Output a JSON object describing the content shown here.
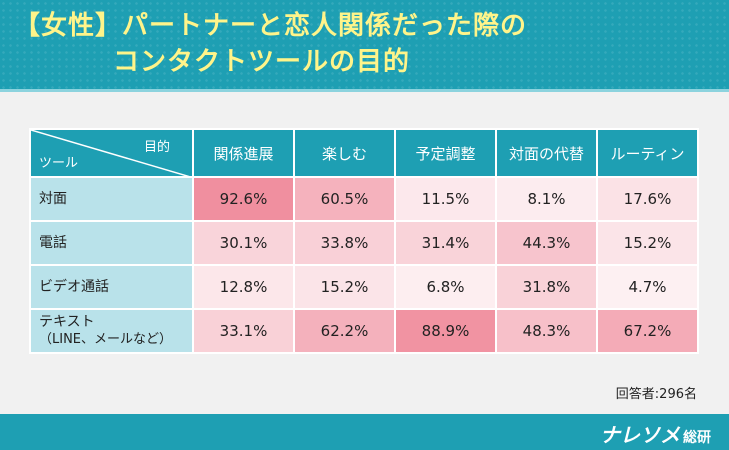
{
  "header": {
    "title_line1": "【女性】パートナーと恋人関係だった際の",
    "title_line2": "コンタクトツールの目的"
  },
  "table_corner": {
    "top": "目的",
    "bottom": "ツール"
  },
  "chart_data": {
    "type": "table",
    "columns": [
      "関係進展",
      "楽しむ",
      "予定調整",
      "対面の代替",
      "ルーティン"
    ],
    "rows": [
      {
        "label": "対面",
        "sublabel": "",
        "values": [
          92.6,
          60.5,
          11.5,
          8.1,
          17.6
        ],
        "display": [
          "92.6%",
          "60.5%",
          "11.5%",
          "8.1%",
          "17.6%"
        ]
      },
      {
        "label": "電話",
        "sublabel": "",
        "values": [
          30.1,
          33.8,
          31.4,
          44.3,
          15.2
        ],
        "display": [
          "30.1%",
          "33.8%",
          "31.4%",
          "44.3%",
          "15.2%"
        ]
      },
      {
        "label": "ビデオ通話",
        "sublabel": "",
        "values": [
          12.8,
          15.2,
          6.8,
          31.8,
          4.7
        ],
        "display": [
          "12.8%",
          "15.2%",
          "6.8%",
          "31.8%",
          "4.7%"
        ]
      },
      {
        "label": "テキスト",
        "sublabel": "（LINE、メールなど）",
        "values": [
          33.1,
          62.2,
          88.9,
          48.3,
          67.2
        ],
        "display": [
          "33.1%",
          "62.2%",
          "88.9%",
          "48.3%",
          "67.2%"
        ]
      }
    ],
    "colors": {
      "header": "#1e9fb3",
      "row_label": "#b9e2ea",
      "heat_low": "#fdf0f2",
      "heat_high": "#f08f9f"
    }
  },
  "footnote": "回答者:296名",
  "footer": {
    "logo_main": "ナレソメ",
    "logo_sub": "総研"
  }
}
